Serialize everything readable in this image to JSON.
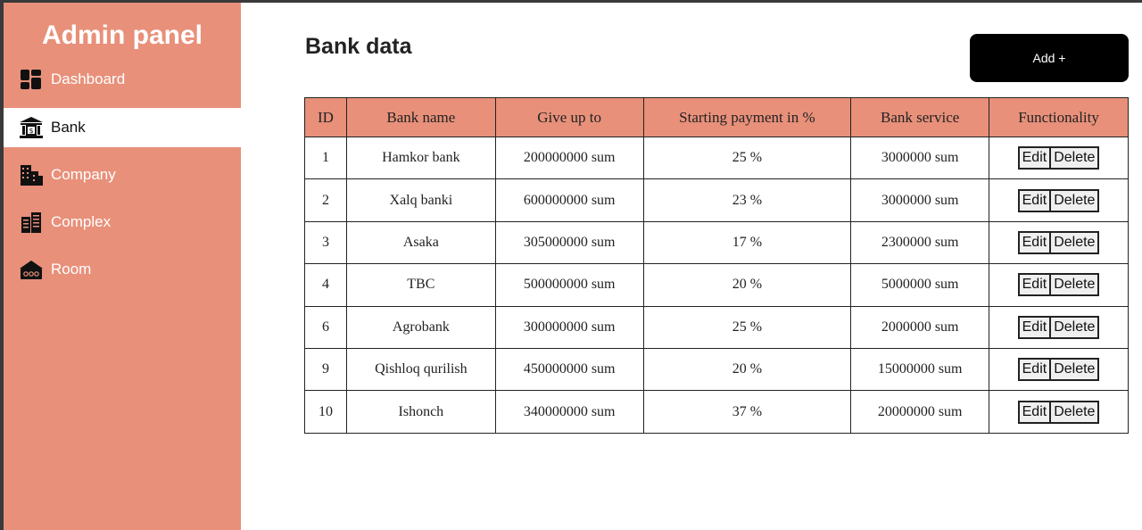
{
  "sidebar": {
    "title": "Admin panel",
    "items": [
      {
        "label": "Dashboard",
        "icon": "dashboard-icon"
      },
      {
        "label": "Bank",
        "icon": "bank-icon"
      },
      {
        "label": "Company",
        "icon": "building-icon"
      },
      {
        "label": "Complex",
        "icon": "complex-icon"
      },
      {
        "label": "Room",
        "icon": "room-icon"
      }
    ],
    "active": "Bank"
  },
  "main": {
    "title": "Bank data",
    "add_label": "Add +"
  },
  "table": {
    "headers": [
      "ID",
      "Bank name",
      "Give up to",
      "Starting payment in %",
      "Bank service",
      "Functionality"
    ],
    "rows": [
      {
        "id": "1",
        "name": "Hamkor bank",
        "give": "200000000 sum",
        "start": "25 %",
        "service": "3000000 sum"
      },
      {
        "id": "2",
        "name": "Xalq banki",
        "give": "600000000 sum",
        "start": "23 %",
        "service": "3000000 sum"
      },
      {
        "id": "3",
        "name": "Asaka",
        "give": "305000000 sum",
        "start": "17 %",
        "service": "2300000 sum"
      },
      {
        "id": "4",
        "name": "TBC",
        "give": "500000000 sum",
        "start": "20 %",
        "service": "5000000 sum"
      },
      {
        "id": "6",
        "name": "Agrobank",
        "give": "300000000 sum",
        "start": "25 %",
        "service": "2000000 sum"
      },
      {
        "id": "9",
        "name": "Qishloq qurilish",
        "give": "450000000 sum",
        "start": "20 %",
        "service": "15000000 sum"
      },
      {
        "id": "10",
        "name": "Ishonch",
        "give": "340000000 sum",
        "start": "37 %",
        "service": "20000000 sum"
      }
    ],
    "edit_label": "Edit",
    "delete_label": "Delete"
  },
  "colors": {
    "accent": "#e8907a",
    "button": "#000000"
  }
}
